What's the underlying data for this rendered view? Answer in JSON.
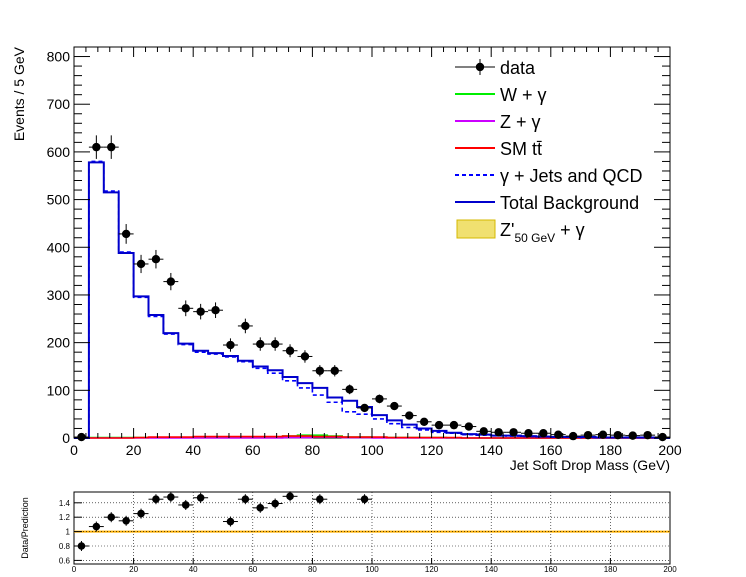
{
  "chart_data": [
    {
      "type": "histogram",
      "xlabel": "Jet Soft Drop Mass (GeV)",
      "ylabel": "Events / 5 GeV",
      "xlim": [
        0,
        200
      ],
      "ylim": [
        0,
        820
      ],
      "x_ticks": [
        0,
        20,
        40,
        60,
        80,
        100,
        120,
        140,
        160,
        180,
        200
      ],
      "y_ticks": [
        0,
        100,
        200,
        300,
        400,
        500,
        600,
        700,
        800
      ],
      "bin_width": 5,
      "legend": {
        "position": "top-right",
        "entries": [
          {
            "label": "data",
            "style": "marker",
            "color": "#000000"
          },
          {
            "label": "W + γ",
            "style": "line",
            "color": "#00ee00"
          },
          {
            "label": "Z + γ",
            "style": "line",
            "color": "#cc00ff"
          },
          {
            "label": "SM tt̄",
            "style": "line",
            "color": "#ff0000"
          },
          {
            "label": "γ + Jets and QCD",
            "style": "dashed",
            "color": "#0000ff"
          },
          {
            "label": "Total Background",
            "style": "line",
            "color": "#0000cc"
          },
          {
            "label": "Z'",
            "sub": "50 GeV",
            "suffix": "+ γ",
            "style": "fill",
            "color": "#f0e070"
          }
        ]
      },
      "series": [
        {
          "name": "data",
          "style": "marker",
          "x": [
            2.5,
            7.5,
            12.5,
            17.5,
            22.5,
            27.5,
            32.5,
            37.5,
            42.5,
            47.5,
            52.5,
            57.5,
            62.5,
            67.5,
            72.5,
            77.5,
            82.5,
            87.5,
            92.5,
            97.5,
            102.5,
            107.5,
            112.5,
            117.5,
            122.5,
            127.5,
            132.5,
            137.5,
            142.5,
            147.5,
            152.5,
            157.5,
            162.5,
            167.5,
            172.5,
            177.5,
            182.5,
            187.5,
            192.5,
            197.5
          ],
          "values": [
            2,
            610,
            610,
            428,
            365,
            375,
            328,
            272,
            265,
            268,
            195,
            235,
            197,
            197,
            183,
            171,
            141,
            141,
            102,
            63,
            82,
            67,
            47,
            34,
            27,
            27,
            24,
            14,
            12,
            12,
            10,
            10,
            7,
            4,
            6,
            7,
            6,
            5,
            6,
            2
          ]
        },
        {
          "name": "Total Background",
          "style": "step",
          "color": "#0000cc",
          "x": [
            2.5,
            7.5,
            12.5,
            17.5,
            22.5,
            27.5,
            32.5,
            37.5,
            42.5,
            47.5,
            52.5,
            57.5,
            62.5,
            67.5,
            72.5,
            77.5,
            82.5,
            87.5,
            92.5,
            97.5,
            102.5,
            107.5,
            112.5,
            117.5,
            122.5,
            127.5,
            132.5,
            137.5,
            142.5,
            147.5,
            152.5,
            157.5,
            162.5,
            167.5,
            172.5,
            177.5,
            182.5,
            187.5,
            192.5,
            197.5
          ],
          "values": [
            0,
            578,
            515,
            388,
            297,
            258,
            220,
            198,
            183,
            178,
            172,
            162,
            150,
            142,
            128,
            115,
            105,
            85,
            78,
            65,
            48,
            37,
            28,
            20,
            15,
            11,
            8,
            7,
            5,
            5,
            4,
            3,
            2,
            2,
            2,
            1,
            1,
            1,
            1,
            0
          ]
        },
        {
          "name": "γ + Jets and QCD",
          "style": "dashed-step",
          "color": "#0000ff",
          "x": [
            2.5,
            7.5,
            12.5,
            17.5,
            22.5,
            27.5,
            32.5,
            37.5,
            42.5,
            47.5,
            52.5,
            57.5,
            62.5,
            67.5,
            72.5,
            77.5,
            82.5,
            87.5,
            92.5,
            97.5,
            102.5,
            107.5,
            112.5,
            117.5,
            122.5,
            127.5,
            132.5,
            137.5,
            142.5,
            147.5,
            152.5,
            157.5,
            162.5,
            167.5,
            172.5,
            177.5,
            182.5,
            187.5,
            192.5,
            197.5
          ],
          "values": [
            0,
            580,
            518,
            390,
            295,
            255,
            218,
            196,
            180,
            176,
            170,
            160,
            146,
            136,
            120,
            105,
            90,
            75,
            55,
            50,
            40,
            30,
            22,
            17,
            12,
            10,
            7,
            6,
            5,
            4,
            3,
            3,
            2,
            2,
            1,
            1,
            1,
            1,
            1,
            0
          ]
        },
        {
          "name": "W + γ",
          "style": "step",
          "color": "#00ee00",
          "x": [
            2.5,
            7.5,
            12.5,
            17.5,
            22.5,
            27.5,
            32.5,
            37.5,
            42.5,
            47.5,
            52.5,
            57.5,
            62.5,
            67.5,
            72.5,
            77.5,
            82.5,
            87.5,
            92.5,
            97.5,
            102.5,
            107.5,
            112.5,
            117.5,
            122.5,
            127.5,
            132.5,
            137.5,
            142.5,
            147.5,
            152.5,
            157.5,
            162.5,
            167.5,
            172.5,
            177.5,
            182.5,
            187.5,
            192.5,
            197.5
          ],
          "values": [
            0,
            1,
            1,
            1,
            1,
            1,
            1,
            1,
            1,
            1,
            1,
            1,
            2,
            2,
            4,
            6,
            6,
            4,
            2,
            2,
            1,
            1,
            1,
            1,
            1,
            0,
            0,
            0,
            0,
            0,
            0,
            0,
            0,
            0,
            0,
            0,
            0,
            0,
            0,
            0
          ]
        },
        {
          "name": "Z + γ",
          "style": "step",
          "color": "#cc00ff",
          "x": [
            2.5,
            7.5,
            12.5,
            17.5,
            22.5,
            27.5,
            32.5,
            37.5,
            42.5,
            47.5,
            52.5,
            57.5,
            62.5,
            67.5,
            72.5,
            77.5,
            82.5,
            87.5,
            92.5,
            97.5,
            102.5,
            107.5,
            112.5,
            117.5,
            122.5,
            127.5,
            132.5,
            137.5,
            142.5,
            147.5,
            152.5,
            157.5,
            162.5,
            167.5,
            172.5,
            177.5,
            182.5,
            187.5,
            192.5,
            197.5
          ],
          "values": [
            0,
            0,
            0,
            0,
            0,
            0,
            0,
            0,
            0,
            0,
            0,
            0,
            0,
            0,
            1,
            1,
            2,
            2,
            1,
            1,
            0,
            0,
            0,
            0,
            0,
            0,
            0,
            0,
            0,
            0,
            0,
            0,
            0,
            0,
            0,
            0,
            0,
            0,
            0,
            0
          ]
        },
        {
          "name": "SM tt̄",
          "style": "step",
          "color": "#ff0000",
          "x": [
            2.5,
            7.5,
            12.5,
            17.5,
            22.5,
            27.5,
            32.5,
            37.5,
            42.5,
            47.5,
            52.5,
            57.5,
            62.5,
            67.5,
            72.5,
            77.5,
            82.5,
            87.5,
            92.5,
            97.5,
            102.5,
            107.5,
            112.5,
            117.5,
            122.5,
            127.5,
            132.5,
            137.5,
            142.5,
            147.5,
            152.5,
            157.5,
            162.5,
            167.5,
            172.5,
            177.5,
            182.5,
            187.5,
            192.5,
            197.5
          ],
          "values": [
            0,
            0,
            0,
            0,
            1,
            2,
            2,
            2,
            3,
            3,
            3,
            3,
            3,
            3,
            4,
            4,
            3,
            3,
            2,
            2,
            2,
            1,
            1,
            1,
            1,
            1,
            0,
            0,
            0,
            0,
            0,
            0,
            0,
            0,
            0,
            0,
            0,
            0,
            0,
            0
          ]
        }
      ]
    },
    {
      "type": "scatter",
      "xlabel": "",
      "ylabel": "Data/Prediction",
      "xlim": [
        0,
        200
      ],
      "ylim": [
        0.55,
        1.55
      ],
      "x_ticks": [
        0,
        20,
        40,
        60,
        80,
        100,
        120,
        140,
        160,
        180,
        200
      ],
      "y_ticks": [
        0.6,
        0.8,
        1,
        1.2,
        1.4
      ],
      "y_tick_labels": [
        "0.6",
        "0.8",
        "1",
        "1.2",
        "1.4"
      ],
      "reference_line": 1,
      "series": [
        {
          "name": "ratio",
          "style": "marker",
          "x": [
            2.5,
            7.5,
            12.5,
            17.5,
            22.5,
            27.5,
            32.5,
            37.5,
            42.5,
            52.5,
            57.5,
            62.5,
            67.5,
            72.5,
            82.5,
            97.5
          ],
          "values": [
            0.8,
            1.07,
            1.2,
            1.15,
            1.25,
            1.45,
            1.48,
            1.37,
            1.47,
            1.14,
            1.45,
            1.33,
            1.39,
            1.49,
            1.45,
            1.45
          ]
        }
      ]
    }
  ]
}
